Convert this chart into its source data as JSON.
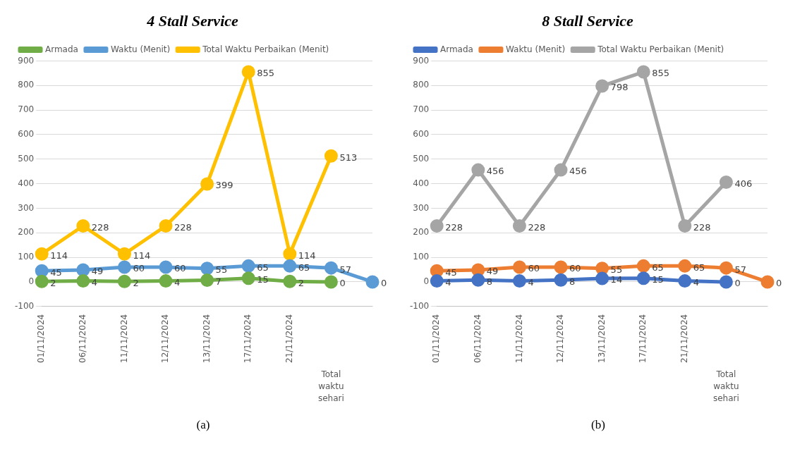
{
  "chart_data": [
    {
      "type": "line",
      "title": "4 Stall Service",
      "categories": [
        "01/11/2024",
        "06/11/2024",
        "11/11/2024",
        "12/11/2024",
        "13/11/2024",
        "17/11/2024",
        "21/11/2024",
        null,
        null
      ],
      "series": [
        {
          "name": "Armada",
          "color": "#70ad47",
          "values": [
            2,
            4,
            2,
            4,
            7,
            15,
            2,
            0,
            null
          ]
        },
        {
          "name": "Waktu (Menit)",
          "color": "#5b9bd5",
          "values": [
            45,
            49,
            60,
            60,
            55,
            65,
            65,
            57,
            0
          ]
        },
        {
          "name": "Total Waktu Perbaikan (Menit)",
          "color": "#ffc000",
          "values": [
            114,
            228,
            114,
            228,
            399,
            855,
            114,
            513,
            null
          ]
        }
      ],
      "ylim": [
        -100,
        900
      ],
      "yticks": [
        -100,
        0,
        100,
        200,
        300,
        400,
        500,
        600,
        700,
        800,
        900
      ],
      "grid": "y",
      "legend": "top",
      "marker": "circle",
      "data_labels": true,
      "annotations": [
        "Total waktu sehari",
        "(a)"
      ]
    },
    {
      "type": "line",
      "title": "8 Stall Service",
      "categories": [
        "01/11/2024",
        "06/11/2024",
        "11/11/2024",
        "12/11/2024",
        "13/11/2024",
        "17/11/2024",
        "21/11/2024",
        null,
        null
      ],
      "series": [
        {
          "name": "Armada",
          "color": "#4472c4",
          "values": [
            4,
            8,
            4,
            8,
            14,
            15,
            4,
            0,
            null
          ]
        },
        {
          "name": "Waktu (Menit)",
          "color": "#ed7d31",
          "values": [
            45,
            49,
            60,
            60,
            55,
            65,
            65,
            57,
            0
          ]
        },
        {
          "name": "Total Waktu Perbaikan (Menit)",
          "color": "#a5a5a5",
          "values": [
            228,
            456,
            228,
            456,
            798,
            855,
            228,
            406,
            null
          ]
        }
      ],
      "ylim": [
        -100,
        900
      ],
      "yticks": [
        -100,
        0,
        100,
        200,
        300,
        400,
        500,
        600,
        700,
        800,
        900
      ],
      "grid": "y",
      "legend": "top",
      "marker": "circle",
      "data_labels": true,
      "annotations": [
        "Total waktu sehari",
        "(b)"
      ]
    }
  ]
}
